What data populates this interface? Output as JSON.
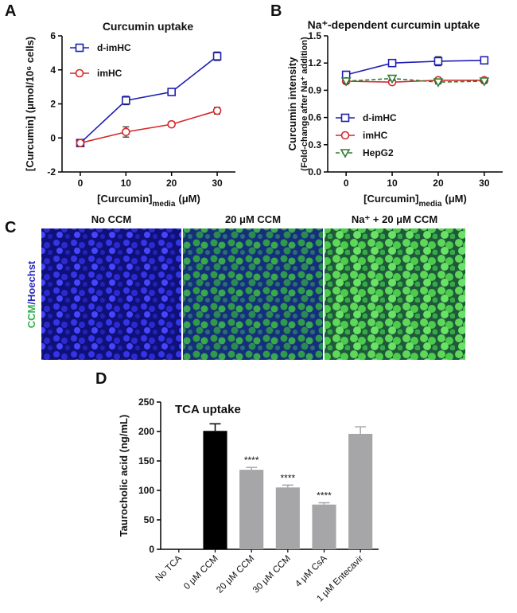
{
  "chart_data": [
    {
      "type": "line",
      "panel_label": "A",
      "title": "Curcumin uptake",
      "ylabel": [
        "[Curcumin] (μmol/10⁶ cells)"
      ],
      "xlabel": "[Curcumin]",
      "xlabel_sub": "media",
      "xlabel_unit": "(μM)",
      "x": [
        0,
        10,
        20,
        30
      ],
      "xlim": [
        -4,
        34
      ],
      "xticks": [
        0,
        10,
        20,
        30
      ],
      "ylim": [
        -2,
        6
      ],
      "yticks": [
        -2,
        0,
        2,
        4,
        6
      ],
      "legend": "upper left",
      "series": [
        {
          "name": "d-imHC",
          "color": "#1f1fb4",
          "marker": "square",
          "linestyle": "solid",
          "values": [
            -0.3,
            2.2,
            2.7,
            4.8
          ],
          "errors": [
            0.2,
            0.25,
            0.2,
            0.25
          ]
        },
        {
          "name": "imHC",
          "color": "#d62728",
          "marker": "circle",
          "linestyle": "solid",
          "values": [
            -0.3,
            0.35,
            0.8,
            1.6
          ],
          "errors": [
            0.15,
            0.3,
            0.15,
            0.2
          ]
        }
      ]
    },
    {
      "type": "line",
      "panel_label": "B",
      "title": "Na⁺-dependent curcumin uptake",
      "ylabel": [
        "Curcumin intensity",
        "(Fold-change after Na⁺ addition)"
      ],
      "xlabel": "[Curcumin]",
      "xlabel_sub": "media",
      "xlabel_unit": "(μM)",
      "x": [
        0,
        10,
        20,
        30
      ],
      "xlim": [
        -4,
        34
      ],
      "xticks": [
        0,
        10,
        20,
        30
      ],
      "ylim": [
        0,
        1.5
      ],
      "yticks": [
        {
          "value": 0,
          "label": "0.0"
        },
        0.3,
        0.6,
        0.9,
        1.2,
        1.5
      ],
      "legend": "lower left",
      "series": [
        {
          "name": "d-imHC",
          "color": "#1f1fb4",
          "marker": "square",
          "linestyle": "solid",
          "values": [
            1.07,
            1.2,
            1.22,
            1.23
          ],
          "errors": [
            0.04,
            0.03,
            0.05,
            0.02
          ]
        },
        {
          "name": "imHC",
          "color": "#d62728",
          "marker": "circle",
          "linestyle": "solid",
          "values": [
            1.0,
            0.99,
            1.01,
            1.01
          ],
          "errors": [
            0.02,
            0.02,
            0.02,
            0.02
          ]
        },
        {
          "name": "HepG2",
          "color": "#2e7d32",
          "marker": "triangle-down",
          "linestyle": "dashed",
          "values": [
            1.0,
            1.03,
            0.99,
            1.0
          ],
          "errors": [
            0.02,
            0.02,
            0.02,
            0.02
          ]
        }
      ]
    },
    {
      "type": "bar",
      "panel_label": "D",
      "title": "TCA uptake",
      "ylabel": [
        "Taurocholic acid (ng/mL)"
      ],
      "categories": [
        "No TCA",
        "0 μM CCM",
        "20 μM CCM",
        "30 μM CCM",
        "4 μM CsA",
        "1 μM Entecavir"
      ],
      "values": [
        0,
        201,
        135,
        105,
        76,
        196
      ],
      "errors": [
        null,
        12,
        4,
        4,
        3,
        12
      ],
      "colors": [
        "#a6a6a8",
        "#000000",
        "#a6a6a8",
        "#a6a6a8",
        "#a6a6a8",
        "#a6a6a8"
      ],
      "annotations": [
        null,
        null,
        "****",
        "****",
        "****",
        null
      ],
      "ylim": [
        0,
        250
      ],
      "yticks": [
        0,
        50,
        100,
        150,
        200,
        250
      ]
    }
  ],
  "image_panel": {
    "panel_label": "C",
    "titles": [
      "No CCM",
      "20 μM CCM",
      "Na⁺ + 20 μM CCM"
    ],
    "ylabel": [
      "CCM",
      "/Hoechst"
    ]
  }
}
